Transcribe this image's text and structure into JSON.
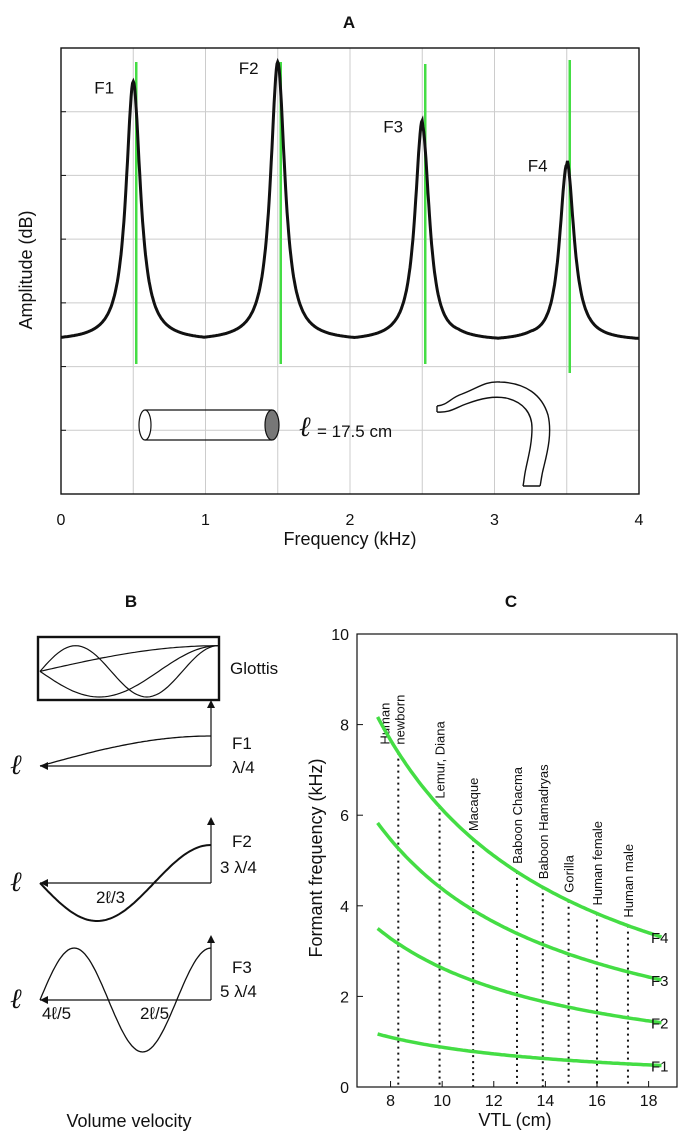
{
  "chart_data": [
    {
      "panel": "A",
      "type": "line",
      "title": "A",
      "xlabel": "Frequency  (kHz)",
      "ylabel": "Amplitude (dB)",
      "xlim": [
        0,
        4
      ],
      "x_ticks": [
        "0",
        "1",
        "2",
        "3",
        "4"
      ],
      "grid": true,
      "colors": {
        "spectrum": "#111111",
        "formant_markers": "#44dd44"
      },
      "formants": [
        {
          "name": "F1",
          "freq_khz": 0.5,
          "peak_rel": 0.93
        },
        {
          "name": "F2",
          "freq_khz": 1.5,
          "peak_rel": 1.0
        },
        {
          "name": "F3",
          "freq_khz": 2.5,
          "peak_rel": 0.79
        },
        {
          "name": "F4",
          "freq_khz": 3.5,
          "peak_rel": 0.65
        }
      ],
      "length_label": "=  17.5 cm",
      "length_symbol": "ℓ"
    },
    {
      "panel": "B",
      "type": "diagram",
      "title": "B",
      "glottis_label": "Glottis",
      "xlabel": "Volume velocity",
      "length_symbol": "ℓ",
      "modes": [
        {
          "name": "F1",
          "wavelength": "λ/4",
          "nodes": []
        },
        {
          "name": "F2",
          "wavelength": "3 λ/4",
          "nodes": [
            "2ℓ/3"
          ]
        },
        {
          "name": "F3",
          "wavelength": "5 λ/4",
          "nodes": [
            "4ℓ/5",
            "2ℓ/5"
          ]
        }
      ]
    },
    {
      "panel": "C",
      "type": "line",
      "title": "C",
      "xlabel": "VTL (cm)",
      "ylabel": "Formant frequency (kHz)",
      "xlim": [
        6.7,
        19.1
      ],
      "ylim": [
        0,
        10
      ],
      "x_ticks": [
        8,
        10,
        12,
        14,
        16,
        18
      ],
      "y_ticks": [
        0,
        2,
        4,
        6,
        8,
        10
      ],
      "x": [
        7.5,
        8.5,
        9.5,
        10.5,
        11.5,
        12.5,
        13.5,
        14.5,
        15.5,
        16.5,
        17.5,
        18.5
      ],
      "series": [
        {
          "name": "F1",
          "formant_index": 1,
          "values": [
            1.17,
            1.03,
            0.92,
            0.83,
            0.76,
            0.7,
            0.65,
            0.6,
            0.56,
            0.53,
            0.5,
            0.47
          ]
        },
        {
          "name": "F2",
          "formant_index": 2,
          "values": [
            3.5,
            3.09,
            2.76,
            2.5,
            2.28,
            2.1,
            1.94,
            1.81,
            1.69,
            1.59,
            1.5,
            1.42
          ]
        },
        {
          "name": "F3",
          "formant_index": 3,
          "values": [
            5.83,
            5.15,
            4.61,
            4.17,
            3.8,
            3.5,
            3.24,
            3.02,
            2.82,
            2.65,
            2.5,
            2.36
          ]
        },
        {
          "name": "F4",
          "formant_index": 4,
          "values": [
            8.17,
            7.21,
            6.45,
            5.83,
            5.33,
            4.9,
            4.54,
            4.22,
            3.95,
            3.71,
            3.5,
            3.31
          ]
        }
      ],
      "species": [
        {
          "name": "Human newborn",
          "vtl": 8.3,
          "lines": [
            "Human",
            "newborn"
          ]
        },
        {
          "name": "Lemur, Diana",
          "vtl": 9.9,
          "lines": [
            "Lemur, Diana"
          ]
        },
        {
          "name": "Macaque",
          "vtl": 11.2,
          "lines": [
            "Macaque"
          ]
        },
        {
          "name": "Baboon Chacma",
          "vtl": 12.9,
          "lines": [
            "Baboon  Chacma"
          ]
        },
        {
          "name": "Baboon Hamadryas",
          "vtl": 13.9,
          "lines": [
            "Baboon Hamadryas"
          ]
        },
        {
          "name": "Gorilla",
          "vtl": 14.9,
          "lines": [
            "Gorilla"
          ]
        },
        {
          "name": "Human female",
          "vtl": 16.0,
          "lines": [
            "Human female"
          ]
        },
        {
          "name": "Human male",
          "vtl": 17.2,
          "lines": [
            "Human male"
          ]
        }
      ],
      "colors": {
        "curves": "#44dd44",
        "species_lines": "#111111"
      }
    }
  ]
}
